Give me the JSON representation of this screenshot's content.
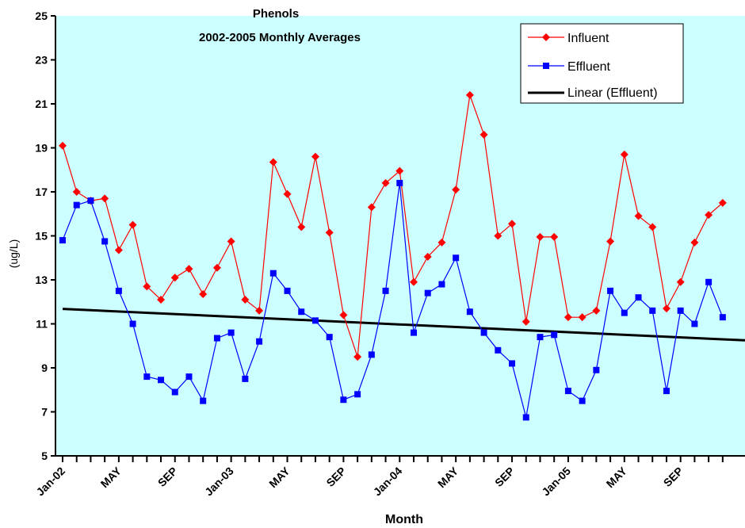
{
  "chart_data": {
    "type": "line",
    "title_line1": "Phenols",
    "title_line2": "2002-2005 Monthly Averages",
    "xlabel": "Month",
    "ylabel": "(ug/L)",
    "ylim": [
      5,
      25
    ],
    "yticks": [
      5,
      7,
      9,
      11,
      13,
      15,
      17,
      19,
      21,
      23,
      25
    ],
    "x_tick_labels": [
      {
        "index": 0,
        "label": "Jan-02"
      },
      {
        "index": 4,
        "label": "MAY"
      },
      {
        "index": 8,
        "label": "SEP"
      },
      {
        "index": 12,
        "label": "Jan-03"
      },
      {
        "index": 16,
        "label": "MAY"
      },
      {
        "index": 20,
        "label": "SEP"
      },
      {
        "index": 24,
        "label": "Jan-04"
      },
      {
        "index": 28,
        "label": "MAY"
      },
      {
        "index": 32,
        "label": "SEP"
      },
      {
        "index": 36,
        "label": "Jan-05"
      },
      {
        "index": 40,
        "label": "MAY"
      },
      {
        "index": 44,
        "label": "SEP"
      }
    ],
    "series": [
      {
        "name": "Influent",
        "color": "#ff0000",
        "marker": "diamond",
        "values": [
          19.1,
          17.0,
          16.6,
          16.7,
          14.35,
          15.5,
          12.7,
          12.1,
          13.1,
          13.5,
          12.35,
          13.55,
          14.75,
          12.1,
          11.6,
          18.35,
          16.9,
          15.4,
          18.6,
          15.15,
          11.4,
          9.5,
          16.3,
          17.4,
          17.95,
          12.9,
          14.05,
          14.7,
          17.1,
          21.4,
          19.6,
          15.0,
          15.55,
          11.1,
          14.95,
          14.95,
          11.3,
          11.3,
          11.6,
          14.75,
          18.7,
          15.9,
          15.4,
          11.7,
          12.9,
          14.7,
          15.95,
          16.5
        ]
      },
      {
        "name": "Effluent",
        "color": "#0000ff",
        "marker": "square",
        "values": [
          14.8,
          16.4,
          16.6,
          14.75,
          12.5,
          11.0,
          8.6,
          8.45,
          7.9,
          8.6,
          7.5,
          10.35,
          10.6,
          8.5,
          10.2,
          13.3,
          12.5,
          11.55,
          11.15,
          10.4,
          7.55,
          7.8,
          9.6,
          12.5,
          17.4,
          10.6,
          12.4,
          12.8,
          14.0,
          11.55,
          10.6,
          9.8,
          9.2,
          6.75,
          10.4,
          10.5,
          7.95,
          7.5,
          8.9,
          12.5,
          11.5,
          12.2,
          11.6,
          7.95,
          11.6,
          11.0,
          12.9,
          11.3
        ]
      },
      {
        "name": "Linear (Effluent)",
        "color": "#000000",
        "marker": "none",
        "trend_start": 11.68,
        "trend_end": 10.25
      }
    ],
    "legend_placement": "top-right",
    "plot_background": "#ccffff",
    "grid": false
  }
}
